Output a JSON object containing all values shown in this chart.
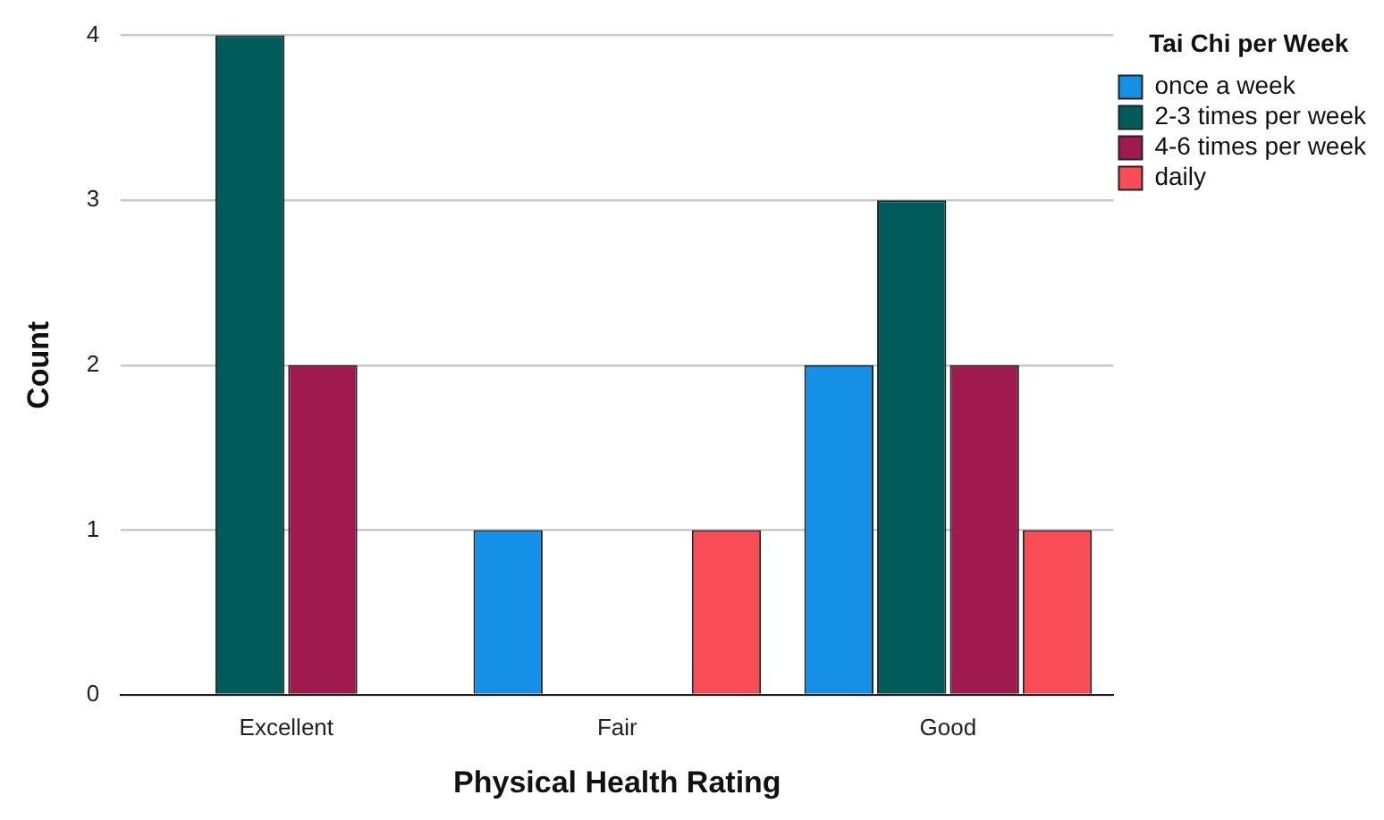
{
  "chart_data": {
    "type": "bar",
    "xlabel": "Physical Health Rating",
    "ylabel": "Count",
    "legend_title": "Tai Chi per Week",
    "categories": [
      "Excellent",
      "Fair",
      "Good"
    ],
    "series": [
      {
        "name": "once a week",
        "color": "#1490e6",
        "values": [
          null,
          1,
          2
        ]
      },
      {
        "name": "2-3 times per week",
        "color": "#005c5a",
        "values": [
          4,
          null,
          3
        ]
      },
      {
        "name": "4-6 times per week",
        "color": "#9e1a4f",
        "values": [
          2,
          null,
          2
        ]
      },
      {
        "name": "daily",
        "color": "#f84d57",
        "values": [
          null,
          1,
          1
        ]
      }
    ],
    "ylim": [
      0,
      4
    ],
    "yticks": [
      0,
      1,
      2,
      3,
      4
    ],
    "grid": "y",
    "legend": "top right"
  }
}
